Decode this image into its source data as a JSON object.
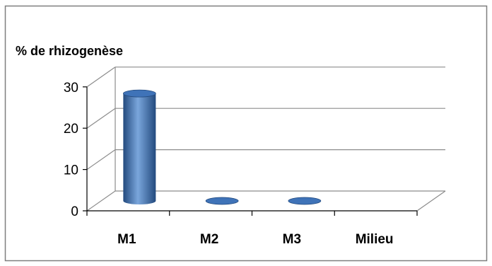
{
  "chart_data": {
    "type": "bar",
    "style": "3d-cylinder",
    "title": "",
    "xlabel": "",
    "ylabel": "% de rhizogenèse",
    "categories": [
      "M1",
      "M2",
      "M3",
      "Milieu"
    ],
    "values": [
      26,
      0,
      0,
      0
    ],
    "ylim": [
      0,
      30
    ],
    "yticks": [
      "0",
      "10",
      "20",
      "30"
    ],
    "grid": true,
    "legend": "none",
    "colors": {
      "bar": "#3f73b8",
      "bar_dark": "#234a7e",
      "bar_light": "#7aa6dc",
      "grid": "#8c8c8c",
      "frame": "#7f7f7f",
      "axis": "#000000"
    }
  }
}
